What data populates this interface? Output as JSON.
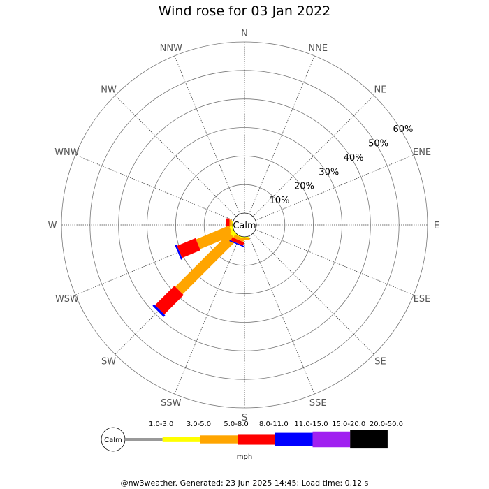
{
  "chart_data": {
    "type": "wind-rose",
    "title": "Wind rose for 03 Jan 2022",
    "directions": [
      "N",
      "NNE",
      "NE",
      "ENE",
      "E",
      "ESE",
      "SE",
      "SSE",
      "S",
      "SSW",
      "SW",
      "WSW",
      "W",
      "WNW",
      "NW",
      "NNW"
    ],
    "radial_ticks": [
      "10%",
      "20%",
      "30%",
      "40%",
      "50%",
      "60%"
    ],
    "radial_max": 60,
    "calm_label": "Calm",
    "unit": "mph",
    "speed_bins": [
      {
        "label": "1.0-3.0",
        "color": "#999999"
      },
      {
        "label": "3.0-5.0",
        "color": "#ffff00"
      },
      {
        "label": "5.0-8.0",
        "color": "#ffa500"
      },
      {
        "label": "8.0-11.0",
        "color": "#ff0000"
      },
      {
        "label": "11.0-15.0",
        "color": "#0000ff"
      },
      {
        "label": "15.0-20.0",
        "color": "#a020f0"
      },
      {
        "label": "20.0-50.0",
        "color": "#000000"
      }
    ],
    "series": [
      {
        "direction": "W",
        "values": [
          0,
          0.3,
          0.8,
          1.2,
          0,
          0,
          0
        ]
      },
      {
        "direction": "WSW",
        "values": [
          0,
          1.0,
          12.5,
          7.0,
          0.6,
          0,
          0
        ]
      },
      {
        "direction": "SW",
        "values": [
          0,
          1.5,
          26.8,
          9.6,
          0.8,
          0,
          0
        ]
      },
      {
        "direction": "SSW",
        "values": [
          0,
          0.3,
          1.2,
          1.2,
          0.4,
          0,
          0
        ]
      },
      {
        "direction": "S",
        "values": [
          0,
          0.5,
          0.5,
          0,
          0,
          0,
          0
        ]
      }
    ]
  },
  "footer": "@nw3weather. Generated: 23 Jun 2025 14:45; Load time: 0.12 s"
}
